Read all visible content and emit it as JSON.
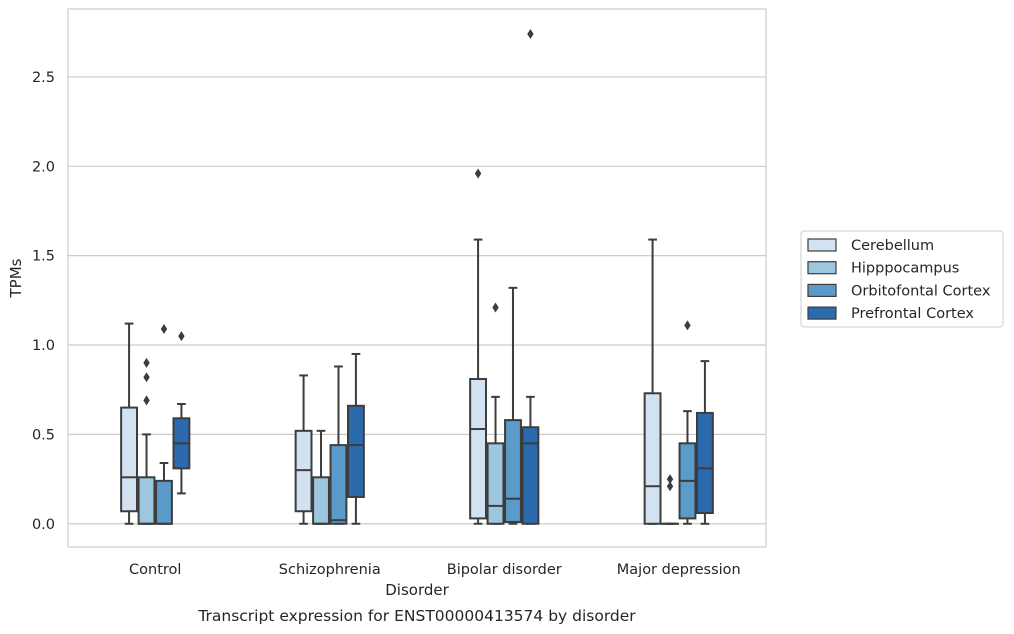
{
  "chart_data": {
    "type": "box",
    "xlabel": "Disorder",
    "ylabel": "TPMs",
    "caption": "Transcript expression for ENST00000413574 by disorder",
    "ylim": [
      -0.13,
      2.88
    ],
    "yticks": [
      "0.0",
      "0.5",
      "1.0",
      "1.5",
      "2.0",
      "2.5"
    ],
    "grid": "horizontal",
    "legend_position": "right",
    "categories": [
      "Control",
      "Schizophrenia",
      "Bipolar disorder",
      "Major depression"
    ],
    "series": [
      {
        "name": "Cerebellum",
        "color": "#d2e2f1",
        "boxes": [
          {
            "whisker_low": 0.0,
            "q1": 0.07,
            "median": 0.26,
            "q3": 0.65,
            "whisker_high": 1.12,
            "outliers": []
          },
          {
            "whisker_low": 0.0,
            "q1": 0.07,
            "median": 0.3,
            "q3": 0.52,
            "whisker_high": 0.83,
            "outliers": []
          },
          {
            "whisker_low": 0.0,
            "q1": 0.03,
            "median": 0.53,
            "q3": 0.81,
            "whisker_high": 1.59,
            "outliers": [
              1.96
            ]
          },
          {
            "whisker_low": 0.0,
            "q1": 0.0,
            "median": 0.21,
            "q3": 0.73,
            "whisker_high": 1.59,
            "outliers": []
          }
        ]
      },
      {
        "name": "Hipppocampus",
        "color": "#9dc6df",
        "boxes": [
          {
            "whisker_low": 0.0,
            "q1": 0.0,
            "median": 0.0,
            "q3": 0.26,
            "whisker_high": 0.5,
            "outliers": [
              0.69,
              0.82,
              0.9
            ]
          },
          {
            "whisker_low": 0.0,
            "q1": 0.0,
            "median": 0.0,
            "q3": 0.26,
            "whisker_high": 0.52,
            "outliers": []
          },
          {
            "whisker_low": 0.0,
            "q1": 0.0,
            "median": 0.1,
            "q3": 0.45,
            "whisker_high": 0.71,
            "outliers": [
              1.21
            ]
          },
          {
            "whisker_low": 0.0,
            "q1": 0.0,
            "median": 0.0,
            "q3": 0.0,
            "whisker_high": 0.0,
            "outliers": [
              0.21,
              0.25
            ]
          }
        ]
      },
      {
        "name": "Orbitofontal Cortex",
        "color": "#5a9bc9",
        "boxes": [
          {
            "whisker_low": 0.0,
            "q1": 0.0,
            "median": 0.0,
            "q3": 0.24,
            "whisker_high": 0.34,
            "outliers": [
              1.09
            ]
          },
          {
            "whisker_low": 0.0,
            "q1": 0.0,
            "median": 0.02,
            "q3": 0.44,
            "whisker_high": 0.88,
            "outliers": []
          },
          {
            "whisker_low": 0.0,
            "q1": 0.01,
            "median": 0.14,
            "q3": 0.58,
            "whisker_high": 1.32,
            "outliers": []
          },
          {
            "whisker_low": 0.0,
            "q1": 0.03,
            "median": 0.24,
            "q3": 0.45,
            "whisker_high": 0.63,
            "outliers": [
              1.11
            ]
          }
        ]
      },
      {
        "name": "Prefrontal Cortex",
        "color": "#2a6aad",
        "boxes": [
          {
            "whisker_low": 0.17,
            "q1": 0.31,
            "median": 0.45,
            "q3": 0.59,
            "whisker_high": 0.67,
            "outliers": [
              1.05
            ]
          },
          {
            "whisker_low": 0.0,
            "q1": 0.15,
            "median": 0.44,
            "q3": 0.66,
            "whisker_high": 0.95,
            "outliers": []
          },
          {
            "whisker_low": 0.0,
            "q1": 0.0,
            "median": 0.45,
            "q3": 0.54,
            "whisker_high": 0.71,
            "outliers": [
              2.74
            ]
          },
          {
            "whisker_low": 0.0,
            "q1": 0.06,
            "median": 0.31,
            "q3": 0.62,
            "whisker_high": 0.91,
            "outliers": []
          }
        ]
      }
    ]
  }
}
